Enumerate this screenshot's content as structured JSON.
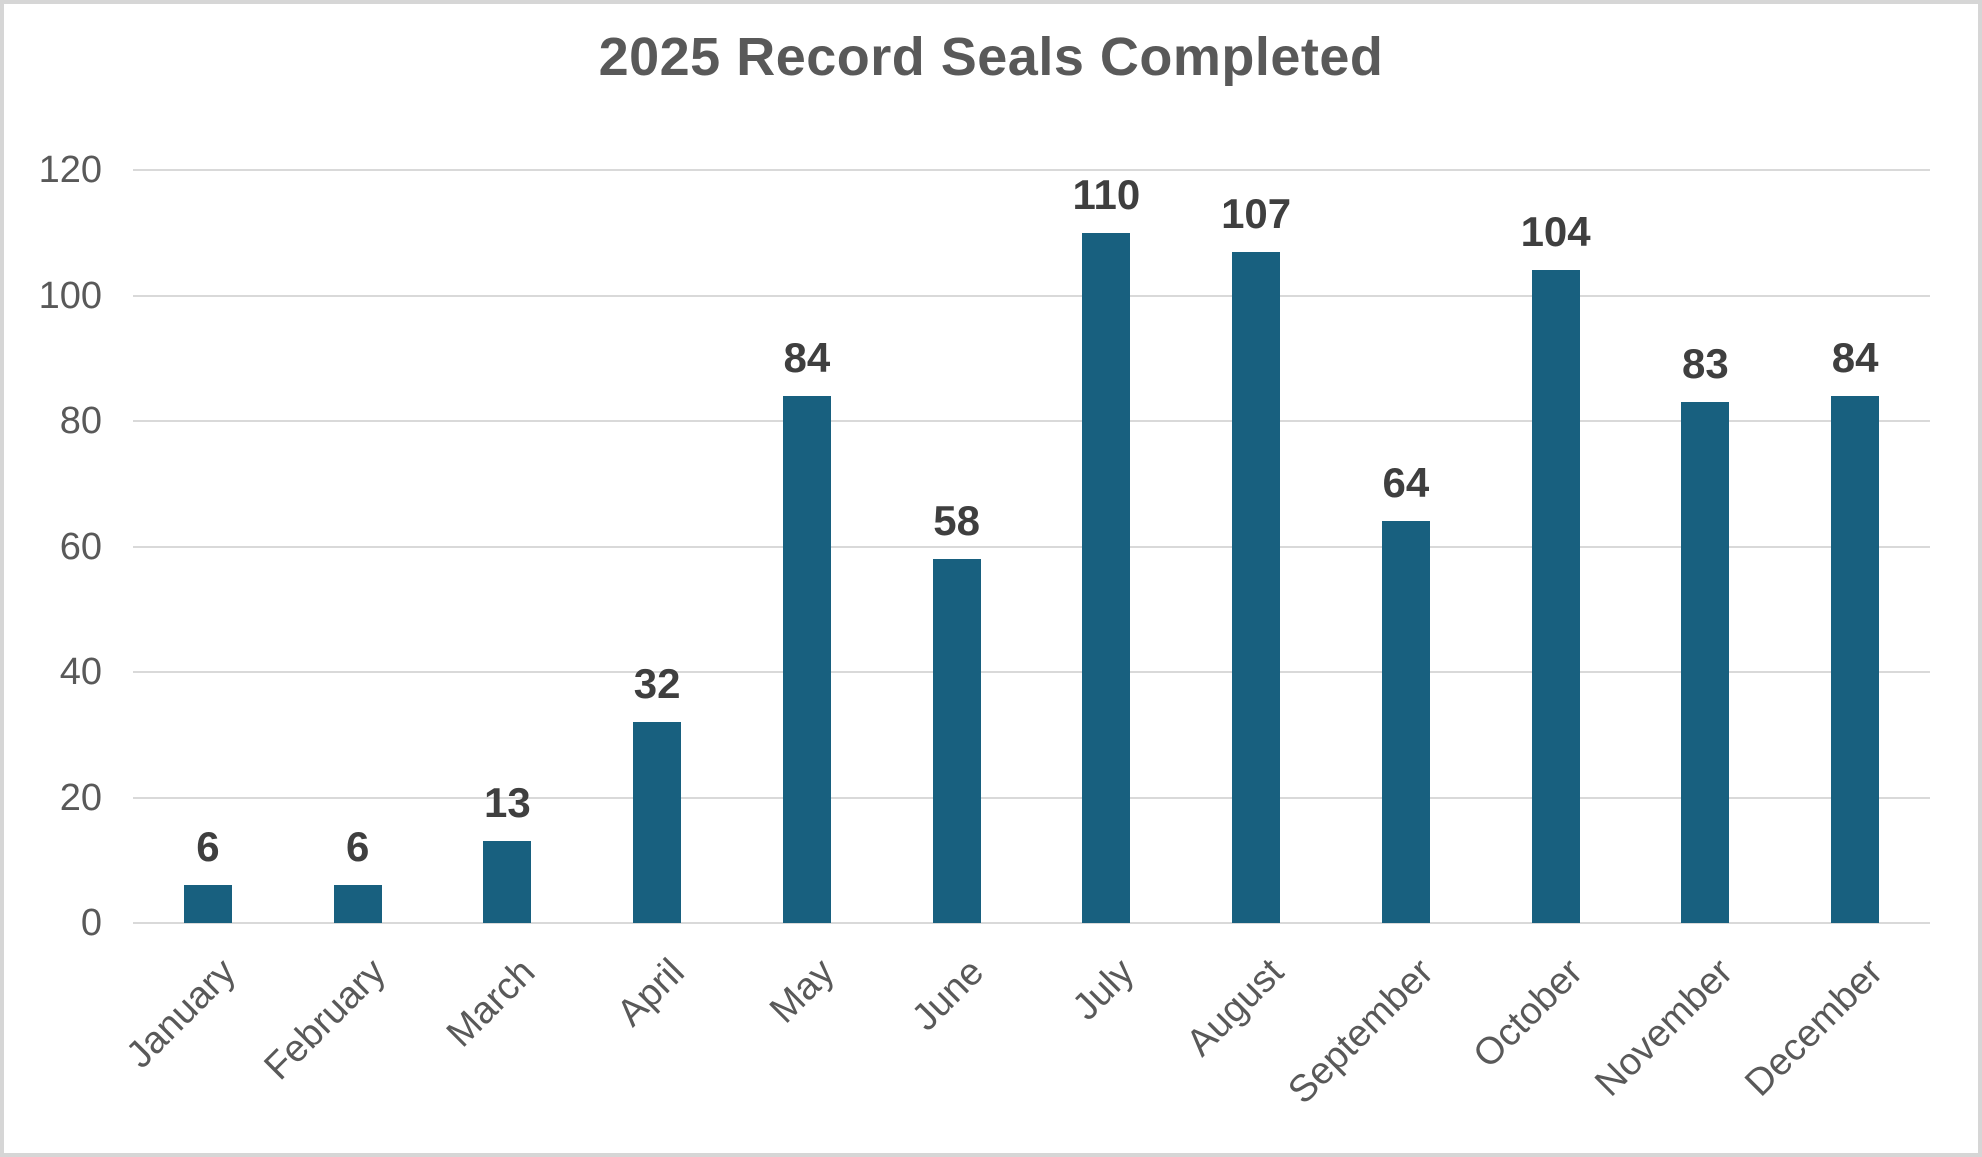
{
  "title": "2025 Record Seals Completed",
  "chart_data": {
    "type": "bar",
    "title": "2025 Record Seals Completed",
    "categories": [
      "January",
      "February",
      "March",
      "April",
      "May",
      "June",
      "July",
      "August",
      "September",
      "October",
      "November",
      "December"
    ],
    "values": [
      6,
      6,
      13,
      32,
      84,
      58,
      110,
      107,
      64,
      104,
      83,
      84
    ],
    "xlabel": "",
    "ylabel": "",
    "ylim": [
      0,
      120
    ],
    "yticks": [
      0,
      20,
      40,
      60,
      80,
      100,
      120
    ],
    "grid": true,
    "legend": false,
    "data_labels": true,
    "x_label_rotation_deg": -45
  },
  "colors": {
    "bar_fill": "#18607F",
    "gridline": "#d9d9d9",
    "axis_label": "#595959",
    "value_label": "#3f3f3f",
    "title": "#595959",
    "background": "#ffffff",
    "frame_border": "#d6d6d6"
  }
}
